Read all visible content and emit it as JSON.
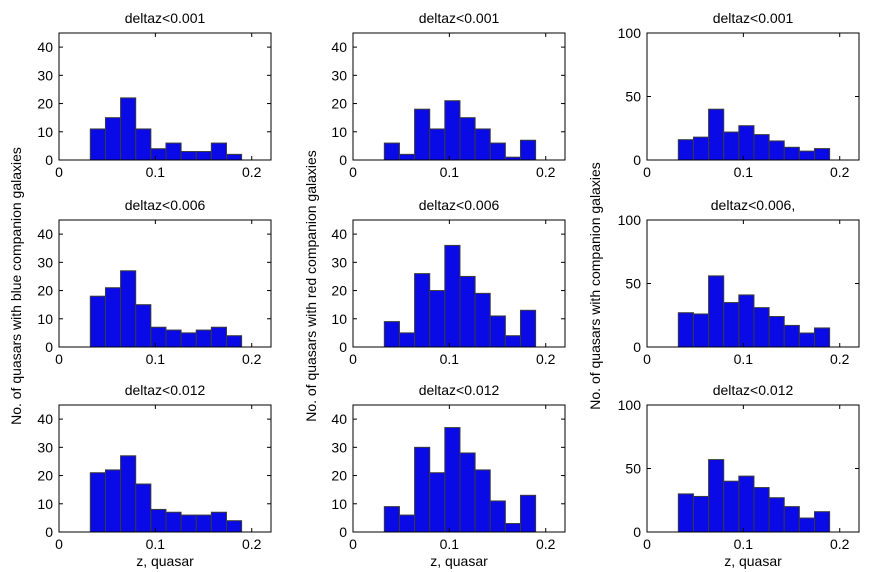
{
  "figure": {
    "ylabels": [
      "No. of quasars with blue companion galaxies",
      "No. of quasars with red companion galaxies",
      "No. of quasars with companion galaxies"
    ],
    "xlabel": "z, quasar"
  },
  "chart_data": [
    {
      "type": "bar",
      "title": "deltaz<0.001",
      "bin_edges": [
        0.0325,
        0.0482,
        0.0639,
        0.0796,
        0.0953,
        0.111,
        0.1267,
        0.1424,
        0.1581,
        0.1738,
        0.1895
      ],
      "values": [
        11,
        15,
        22,
        11,
        4,
        6,
        3,
        3,
        6,
        2
      ],
      "xlim": [
        0,
        0.22
      ],
      "ylim": [
        0,
        45
      ],
      "xticks": [
        "0",
        "0.1",
        "0.2"
      ],
      "yticks": [
        "0",
        "10",
        "20",
        "30",
        "40"
      ],
      "ytick_values": [
        0,
        10,
        20,
        30,
        40
      ],
      "xlabel": "",
      "ylabel": "",
      "color": "#0a0ae6"
    },
    {
      "type": "bar",
      "title": "deltaz<0.001",
      "bin_edges": [
        0.0325,
        0.0482,
        0.0639,
        0.0796,
        0.0953,
        0.111,
        0.1267,
        0.1424,
        0.1581,
        0.1738,
        0.1895
      ],
      "values": [
        6,
        2,
        18,
        11,
        21,
        15,
        11,
        6,
        1,
        7
      ],
      "xlim": [
        0,
        0.22
      ],
      "ylim": [
        0,
        45
      ],
      "xticks": [
        "0",
        "0.1",
        "0.2"
      ],
      "yticks": [
        "0",
        "10",
        "20",
        "30",
        "40"
      ],
      "ytick_values": [
        0,
        10,
        20,
        30,
        40
      ],
      "xlabel": "",
      "ylabel": "",
      "color": "#0a0ae6"
    },
    {
      "type": "bar",
      "title": "deltaz<0.001",
      "bin_edges": [
        0.0325,
        0.0482,
        0.0639,
        0.0796,
        0.0953,
        0.111,
        0.1267,
        0.1424,
        0.1581,
        0.1738,
        0.1895
      ],
      "values": [
        16,
        18,
        40,
        22,
        27,
        20,
        15,
        10,
        7,
        9
      ],
      "xlim": [
        0,
        0.22
      ],
      "ylim": [
        0,
        100
      ],
      "xticks": [
        "0",
        "0.1",
        "0.2"
      ],
      "yticks": [
        "0",
        "50",
        "100"
      ],
      "ytick_values": [
        0,
        50,
        100
      ],
      "xlabel": "",
      "ylabel": "",
      "color": "#0a0ae6"
    },
    {
      "type": "bar",
      "title": "deltaz<0.006",
      "bin_edges": [
        0.0325,
        0.0482,
        0.0639,
        0.0796,
        0.0953,
        0.111,
        0.1267,
        0.1424,
        0.1581,
        0.1738,
        0.1895
      ],
      "values": [
        18,
        21,
        27,
        15,
        7,
        6,
        5,
        6,
        7,
        4
      ],
      "xlim": [
        0,
        0.22
      ],
      "ylim": [
        0,
        45
      ],
      "xticks": [
        "0",
        "0.1",
        "0.2"
      ],
      "yticks": [
        "0",
        "10",
        "20",
        "30",
        "40"
      ],
      "ytick_values": [
        0,
        10,
        20,
        30,
        40
      ],
      "xlabel": "",
      "ylabel": "",
      "color": "#0a0ae6"
    },
    {
      "type": "bar",
      "title": "deltaz<0.006",
      "bin_edges": [
        0.0325,
        0.0482,
        0.0639,
        0.0796,
        0.0953,
        0.111,
        0.1267,
        0.1424,
        0.1581,
        0.1738,
        0.1895
      ],
      "values": [
        9,
        5,
        26,
        20,
        36,
        25,
        19,
        11,
        4,
        13
      ],
      "xlim": [
        0,
        0.22
      ],
      "ylim": [
        0,
        45
      ],
      "xticks": [
        "0",
        "0.1",
        "0.2"
      ],
      "yticks": [
        "0",
        "10",
        "20",
        "30",
        "40"
      ],
      "ytick_values": [
        0,
        10,
        20,
        30,
        40
      ],
      "xlabel": "",
      "ylabel": "",
      "color": "#0a0ae6"
    },
    {
      "type": "bar",
      "title": "deltaz<0.006,",
      "bin_edges": [
        0.0325,
        0.0482,
        0.0639,
        0.0796,
        0.0953,
        0.111,
        0.1267,
        0.1424,
        0.1581,
        0.1738,
        0.1895
      ],
      "values": [
        27,
        26,
        56,
        35,
        41,
        31,
        24,
        17,
        11,
        15
      ],
      "xlim": [
        0,
        0.22
      ],
      "ylim": [
        0,
        100
      ],
      "xticks": [
        "0",
        "0.1",
        "0.2"
      ],
      "yticks": [
        "0",
        "50",
        "100"
      ],
      "ytick_values": [
        0,
        50,
        100
      ],
      "xlabel": "",
      "ylabel": "",
      "color": "#0a0ae6"
    },
    {
      "type": "bar",
      "title": "deltaz<0.012",
      "bin_edges": [
        0.0325,
        0.0482,
        0.0639,
        0.0796,
        0.0953,
        0.111,
        0.1267,
        0.1424,
        0.1581,
        0.1738,
        0.1895
      ],
      "values": [
        21,
        22,
        27,
        17,
        8,
        7,
        6,
        6,
        7,
        4
      ],
      "xlim": [
        0,
        0.22
      ],
      "ylim": [
        0,
        45
      ],
      "xticks": [
        "0",
        "0.1",
        "0.2"
      ],
      "yticks": [
        "0",
        "10",
        "20",
        "30",
        "40"
      ],
      "ytick_values": [
        0,
        10,
        20,
        30,
        40
      ],
      "xlabel": "z, quasar",
      "ylabel": "",
      "color": "#0a0ae6"
    },
    {
      "type": "bar",
      "title": "deltaz<0.012",
      "bin_edges": [
        0.0325,
        0.0482,
        0.0639,
        0.0796,
        0.0953,
        0.111,
        0.1267,
        0.1424,
        0.1581,
        0.1738,
        0.1895
      ],
      "values": [
        9,
        6,
        30,
        21,
        37,
        28,
        22,
        11,
        3,
        13
      ],
      "xlim": [
        0,
        0.22
      ],
      "ylim": [
        0,
        45
      ],
      "xticks": [
        "0",
        "0.1",
        "0.2"
      ],
      "yticks": [
        "0",
        "10",
        "20",
        "30",
        "40"
      ],
      "ytick_values": [
        0,
        10,
        20,
        30,
        40
      ],
      "xlabel": "z, quasar",
      "ylabel": "",
      "color": "#0a0ae6"
    },
    {
      "type": "bar",
      "title": "deltaz<0.012",
      "bin_edges": [
        0.0325,
        0.0482,
        0.0639,
        0.0796,
        0.0953,
        0.111,
        0.1267,
        0.1424,
        0.1581,
        0.1738,
        0.1895
      ],
      "values": [
        30,
        28,
        57,
        40,
        44,
        35,
        27,
        20,
        11,
        16
      ],
      "xlim": [
        0,
        0.22
      ],
      "ylim": [
        0,
        100
      ],
      "xticks": [
        "0",
        "0.1",
        "0.2"
      ],
      "yticks": [
        "0",
        "50",
        "100"
      ],
      "ytick_values": [
        0,
        50,
        100
      ],
      "xlabel": "z, quasar",
      "ylabel": "",
      "color": "#0a0ae6"
    }
  ]
}
